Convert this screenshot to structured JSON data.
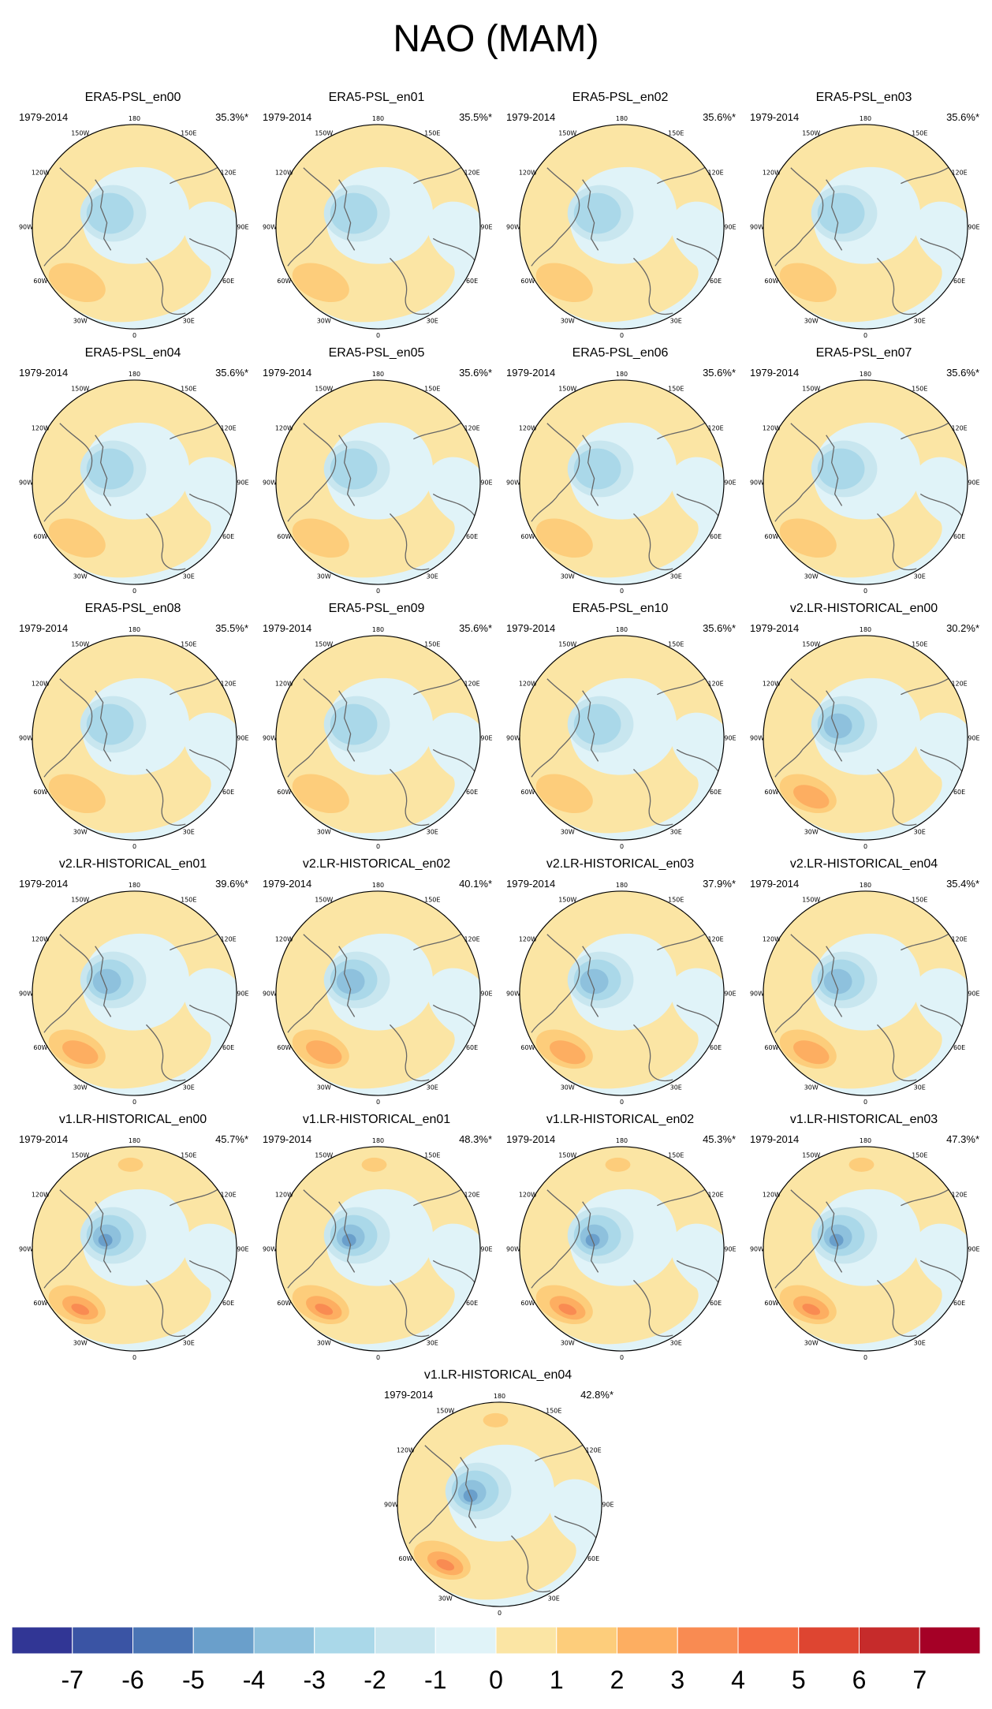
{
  "title": "NAO (MAM)",
  "period": "1979-2014",
  "panels": [
    {
      "title": "ERA5-PSL_en00",
      "pct": "35.3%*"
    },
    {
      "title": "ERA5-PSL_en01",
      "pct": "35.5%*"
    },
    {
      "title": "ERA5-PSL_en02",
      "pct": "35.6%*"
    },
    {
      "title": "ERA5-PSL_en03",
      "pct": "35.6%*"
    },
    {
      "title": "ERA5-PSL_en04",
      "pct": "35.6%*"
    },
    {
      "title": "ERA5-PSL_en05",
      "pct": "35.6%*"
    },
    {
      "title": "ERA5-PSL_en06",
      "pct": "35.6%*"
    },
    {
      "title": "ERA5-PSL_en07",
      "pct": "35.6%*"
    },
    {
      "title": "ERA5-PSL_en08",
      "pct": "35.5%*"
    },
    {
      "title": "ERA5-PSL_en09",
      "pct": "35.6%*"
    },
    {
      "title": "ERA5-PSL_en10",
      "pct": "35.6%*"
    },
    {
      "title": "v2.LR-HISTORICAL_en00",
      "pct": "30.2%*"
    },
    {
      "title": "v2.LR-HISTORICAL_en01",
      "pct": "39.6%*"
    },
    {
      "title": "v2.LR-HISTORICAL_en02",
      "pct": "40.1%*"
    },
    {
      "title": "v2.LR-HISTORICAL_en03",
      "pct": "37.9%*"
    },
    {
      "title": "v2.LR-HISTORICAL_en04",
      "pct": "35.4%*"
    },
    {
      "title": "v1.LR-HISTORICAL_en00",
      "pct": "45.7%*"
    },
    {
      "title": "v1.LR-HISTORICAL_en01",
      "pct": "48.3%*"
    },
    {
      "title": "v1.LR-HISTORICAL_en02",
      "pct": "45.3%*"
    },
    {
      "title": "v1.LR-HISTORICAL_en03",
      "pct": "47.3%*"
    },
    {
      "title": "v1.LR-HISTORICAL_en04",
      "pct": "42.8%*"
    }
  ],
  "longitude_labels": [
    "180",
    "150E",
    "120E",
    "90E",
    "60E",
    "30E",
    "0",
    "30W",
    "60W",
    "90W",
    "120W",
    "150W"
  ],
  "colorbar": {
    "labels": [
      "-7",
      "-6",
      "-5",
      "-4",
      "-3",
      "-2",
      "-1",
      "0",
      "1",
      "2",
      "3",
      "4",
      "5",
      "6",
      "7"
    ],
    "colors": [
      "#313695",
      "#3a54a4",
      "#4a74b4",
      "#6a9fcb",
      "#8ec1dd",
      "#aad8e9",
      "#c8e6ef",
      "#e0f3f8",
      "#fbe5a4",
      "#fdcd7b",
      "#fdae61",
      "#f98b52",
      "#f46d43",
      "#de4531",
      "#c62b2b",
      "#a50026"
    ]
  }
}
